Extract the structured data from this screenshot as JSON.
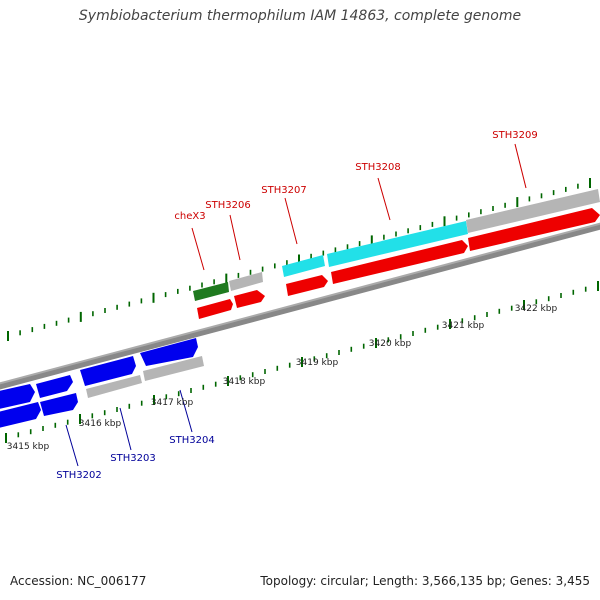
{
  "title": "Symbiobacterium thermophilum IAM 14863, complete genome",
  "footer": {
    "accession": "Accession: NC_006177",
    "summary": "Topology: circular; Length: 3,566,135 bp; Genes: 3,455"
  },
  "colors": {
    "forward_label": "#cc0000",
    "reverse_label": "#000099",
    "tick": "#006600",
    "backbone": "#777777"
  },
  "kbp_labels": [
    "3415 kbp",
    "3416 kbp",
    "3417 kbp",
    "3418 kbp",
    "3419 kbp",
    "3420 kbp",
    "3421 kbp",
    "3422 kbp"
  ],
  "forward_genes": [
    "cheX3",
    "STH3206",
    "STH3207",
    "STH3208",
    "STH3209"
  ],
  "reverse_genes": [
    "STH3202",
    "STH3203",
    "STH3204"
  ]
}
